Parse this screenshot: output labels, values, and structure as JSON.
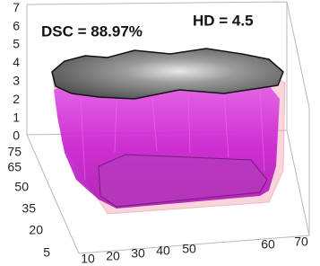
{
  "annotations": {
    "dsc": "DSC = 88.97%",
    "hd": "HD = 4.5"
  },
  "axes": {
    "z_ticks": [
      0,
      1,
      2,
      3,
      4,
      5,
      6,
      7
    ],
    "y_ticks": [
      75,
      65,
      50,
      35,
      20,
      5
    ],
    "x_ticks": [
      10,
      20,
      30,
      40,
      50,
      60,
      70
    ]
  }
}
